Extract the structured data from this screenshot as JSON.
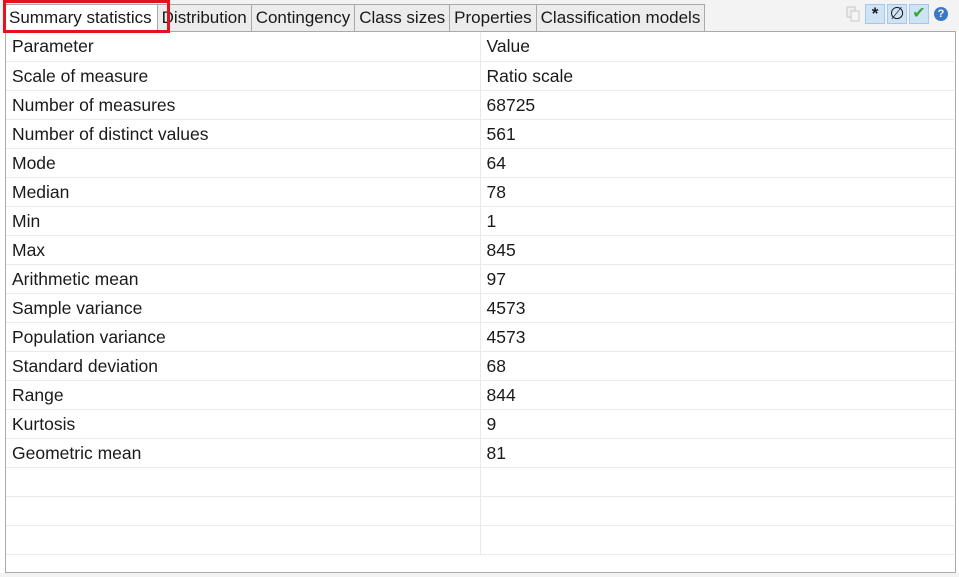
{
  "tabs": [
    {
      "label": "Summary statistics",
      "active": true
    },
    {
      "label": "Distribution"
    },
    {
      "label": "Contingency"
    },
    {
      "label": "Class sizes"
    },
    {
      "label": "Properties"
    },
    {
      "label": "Classification models"
    }
  ],
  "toolbar": {
    "copy_icon": "copy-icon",
    "asterisk_label": "*",
    "empty_set_label": "∅",
    "check_label": "✔",
    "help_label": "?"
  },
  "table": {
    "headers": [
      "Parameter",
      "Value"
    ],
    "rows": [
      [
        "Scale of measure",
        "Ratio scale"
      ],
      [
        "Number of measures",
        "68725"
      ],
      [
        "Number of distinct values",
        "561"
      ],
      [
        "Mode",
        "64"
      ],
      [
        "Median",
        "78"
      ],
      [
        "Min",
        "1"
      ],
      [
        "Max",
        "845"
      ],
      [
        "Arithmetic mean",
        "97"
      ],
      [
        "Sample variance",
        "4573"
      ],
      [
        "Population variance",
        "4573"
      ],
      [
        "Standard deviation",
        "68"
      ],
      [
        "Range",
        "844"
      ],
      [
        "Kurtosis",
        "9"
      ],
      [
        "Geometric mean",
        "81"
      ],
      [
        "",
        ""
      ],
      [
        "",
        ""
      ],
      [
        "",
        ""
      ]
    ]
  },
  "colors": {
    "highlight": "#e3131b",
    "check": "#3aa63a",
    "help": "#3b78c8"
  }
}
